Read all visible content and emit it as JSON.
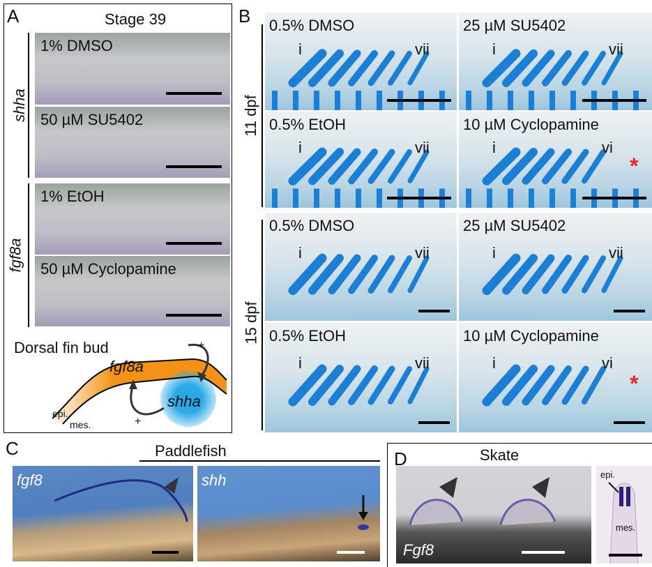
{
  "panel_a": {
    "letter": "A",
    "title": "Stage 39",
    "row_labels": [
      "shha",
      "fgf8a"
    ],
    "images": [
      "1% DMSO",
      "50 µM SU5402",
      "1% EtOH",
      "50 µM Cyclopamine"
    ],
    "diagram": {
      "title": "Dorsal fin bud",
      "gene_top": "fgf8a",
      "gene_bottom": "shha",
      "layer_outer": "epi.",
      "layer_inner": "mes.",
      "signs": [
        "+",
        "+"
      ]
    }
  },
  "panel_b": {
    "letter": "B",
    "row_labels": [
      "11 dpf",
      "15 dpf"
    ],
    "images": [
      {
        "label": "0.5% DMSO",
        "first": "i",
        "last": "vii"
      },
      {
        "label": "25 µM SU5402",
        "first": "i",
        "last": "vii"
      },
      {
        "label": "0.5% EtOH",
        "first": "i",
        "last": "vii"
      },
      {
        "label": "10 µM Cyclopamine",
        "first": "i",
        "last": "vi",
        "marker": "*"
      },
      {
        "label": "0.5% DMSO",
        "first": "i",
        "last": "vii"
      },
      {
        "label": "25 µM SU5402",
        "first": "i",
        "last": "vii"
      },
      {
        "label": "0.5% EtOH",
        "first": "i",
        "last": "vii"
      },
      {
        "label": "10 µM Cyclopamine",
        "first": "i",
        "last": "vi",
        "marker": "*"
      }
    ]
  },
  "panel_c": {
    "letter": "C",
    "title": "Paddlefish",
    "images": [
      "fgf8",
      "shh"
    ]
  },
  "panel_d": {
    "letter": "D",
    "title": "Skate",
    "image_label": "Fgf8",
    "inset_labels": [
      "epi.",
      "mes."
    ]
  }
}
